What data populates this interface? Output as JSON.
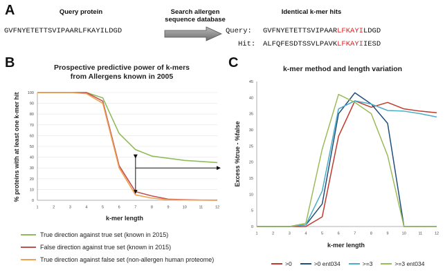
{
  "panel_a": {
    "letter": "A",
    "query_label": "Query protein",
    "search_label_line1": "Search allergen",
    "search_label_line2": "sequence database",
    "hits_label": "Identical k-mer hits",
    "query_sequence": "GVFNYETETTSVIPAARLFKAYILDGD",
    "align_query_label": "Query:",
    "align_hit_label": "Hit:",
    "query_seq_before": "GVFNYETETTSVIPAAR",
    "query_seq_match": "LFKAYI",
    "query_seq_after": "LDGD",
    "hit_seq_before": "ALFQFESDTSSVLPAVK",
    "hit_seq_match": "LFKAYI",
    "hit_seq_after": "IESD"
  },
  "panel_b": {
    "letter": "B",
    "legend": [
      "True direction against true set (known in 2015)",
      "False direction against true set (known in 2015)",
      "True direction against false set (non-allergen human proteome)"
    ]
  },
  "panel_c": {
    "letter": "C",
    "legend": [
      ">0",
      ">0 ent034",
      ">=3",
      ">=3 ent034"
    ]
  },
  "colors": {
    "green": "#8fbc5a",
    "red": "#c0504d",
    "orange": "#f0a050",
    "navy": "#1f4e79",
    "cyan": "#4bacc6",
    "lime": "#9bbb59",
    "crimson": "#c0392b"
  },
  "chart_data": [
    {
      "type": "line",
      "title": "Prospective predictive power of k-mers from Allergens known in 2005",
      "title_line1": "Prospective predictive power of k-mers",
      "title_line2": "from Allergens known in 2005",
      "xlabel": "k-mer length",
      "ylabel": "% proteins with at least one k-mer hit",
      "categories": [
        1,
        2,
        3,
        4,
        5,
        6,
        7,
        8,
        9,
        10,
        11,
        12
      ],
      "xlim": [
        1,
        12
      ],
      "ylim": [
        0,
        100
      ],
      "yticks": [
        0,
        10,
        20,
        30,
        40,
        50,
        60,
        70,
        80,
        90,
        100
      ],
      "series": [
        {
          "name": "True direction against true set (known in 2015)",
          "color": "#8fbc5a",
          "values": [
            100,
            100,
            100,
            100,
            95,
            62,
            47,
            41,
            39,
            37,
            36,
            35
          ]
        },
        {
          "name": "False direction against true set (known in 2015)",
          "color": "#c0504d",
          "values": [
            100,
            100,
            100,
            100,
            92,
            32,
            8,
            4,
            1,
            0.5,
            0.2,
            0.1
          ]
        },
        {
          "name": "True direction against false set (non-allergen human proteome)",
          "color": "#f0a050",
          "values": [
            100,
            100,
            100,
            99,
            90,
            30,
            5,
            2,
            0.5,
            0.2,
            0.1,
            0
          ]
        }
      ]
    },
    {
      "type": "line",
      "title": "k-mer method and length variation",
      "xlabel": "k-mer length",
      "ylabel": "Excess %true - %false",
      "categories": [
        1,
        2,
        3,
        4,
        5,
        6,
        7,
        8,
        9,
        10,
        11,
        12
      ],
      "xlim": [
        1,
        12
      ],
      "ylim": [
        0,
        45
      ],
      "yticks": [
        0,
        5,
        10,
        15,
        20,
        25,
        30,
        35,
        40,
        45
      ],
      "series": [
        {
          "name": ">0",
          "color": "#c0392b",
          "values": [
            0,
            0,
            0,
            0,
            3,
            28,
            39,
            37,
            38.5,
            36.5,
            35.8,
            35.3
          ]
        },
        {
          "name": ">0 ent034",
          "color": "#1f4e79",
          "values": [
            0,
            0,
            0,
            0.5,
            7,
            35,
            41.5,
            38,
            32,
            0,
            0,
            0
          ]
        },
        {
          "name": ">=3",
          "color": "#4bacc6",
          "values": [
            0,
            0,
            0,
            0.5,
            11,
            36.5,
            39,
            38,
            36,
            35.8,
            35,
            34
          ]
        },
        {
          "name": ">=3 ent034",
          "color": "#9bbb59",
          "values": [
            0,
            0,
            0,
            1,
            24,
            41,
            38.5,
            35,
            22,
            0,
            0,
            0
          ]
        }
      ]
    }
  ]
}
